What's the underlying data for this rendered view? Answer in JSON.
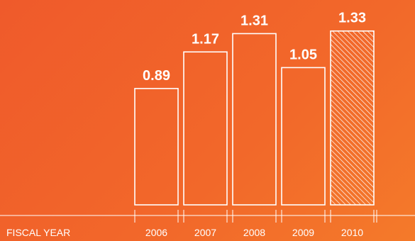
{
  "chart_data": {
    "type": "bar",
    "categories": [
      "2006",
      "2007",
      "2008",
      "2009",
      "2010"
    ],
    "values": [
      0.89,
      1.17,
      1.31,
      1.05,
      1.33
    ],
    "value_labels": [
      "0.89",
      "1.17",
      "1.31",
      "1.05",
      "1.33"
    ],
    "xlabel": "FISCAL YEAR",
    "ylabel": "",
    "title": "",
    "hatched_categories": [
      "2010"
    ],
    "grid": false,
    "legend": "none",
    "colors": {
      "background_start": "#ef5a2b",
      "background_end": "#f47a2a",
      "bar_stroke": "#ffffff",
      "text": "#ffffff"
    }
  }
}
